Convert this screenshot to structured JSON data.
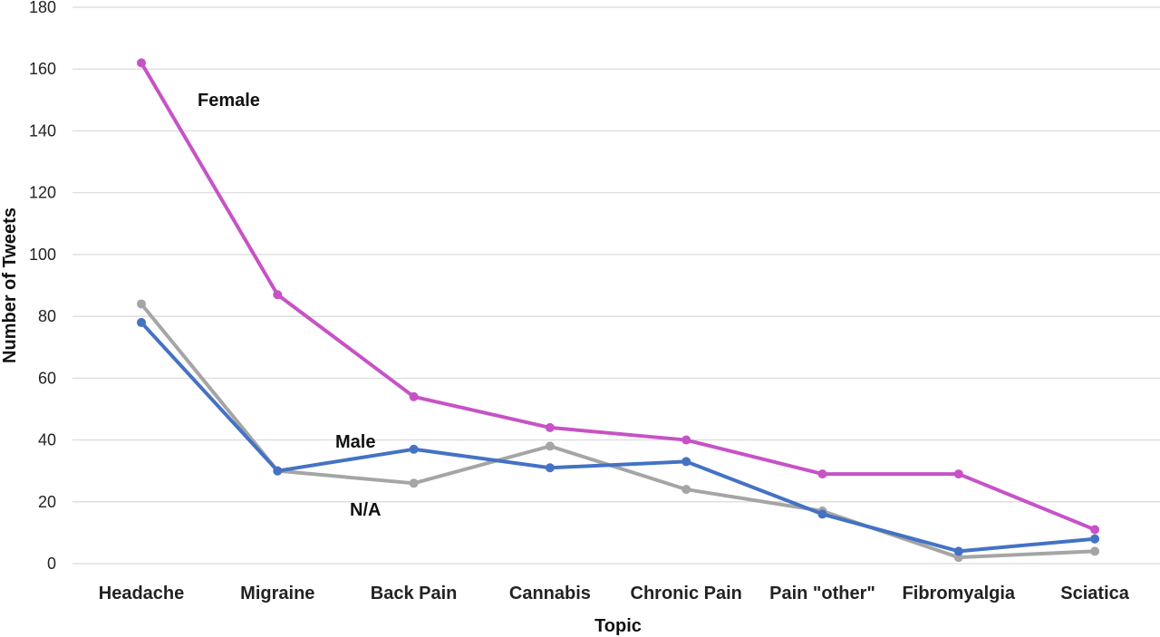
{
  "chart_data": {
    "type": "line",
    "categories": [
      "Headache",
      "Migraine",
      "Back Pain",
      "Cannabis",
      "Chronic Pain",
      "Pain \"other\"",
      "Fibromyalgia",
      "Sciatica"
    ],
    "series": [
      {
        "name": "Female",
        "color": "#c653c6",
        "values": [
          162,
          87,
          54,
          44,
          40,
          29,
          29,
          11
        ]
      },
      {
        "name": "Male",
        "color": "#4472c4",
        "values": [
          78,
          30,
          37,
          31,
          33,
          16,
          4,
          8
        ]
      },
      {
        "name": "N/A",
        "color": "#a5a5a5",
        "values": [
          84,
          30,
          26,
          38,
          24,
          17,
          2,
          4
        ]
      }
    ],
    "xlabel": "Topic",
    "ylabel": "Number of Tweets",
    "ylim": [
      0,
      180
    ],
    "yticks": [
      0,
      20,
      40,
      60,
      80,
      100,
      120,
      140,
      160,
      180
    ],
    "grid": true,
    "legend": "inline labels"
  }
}
